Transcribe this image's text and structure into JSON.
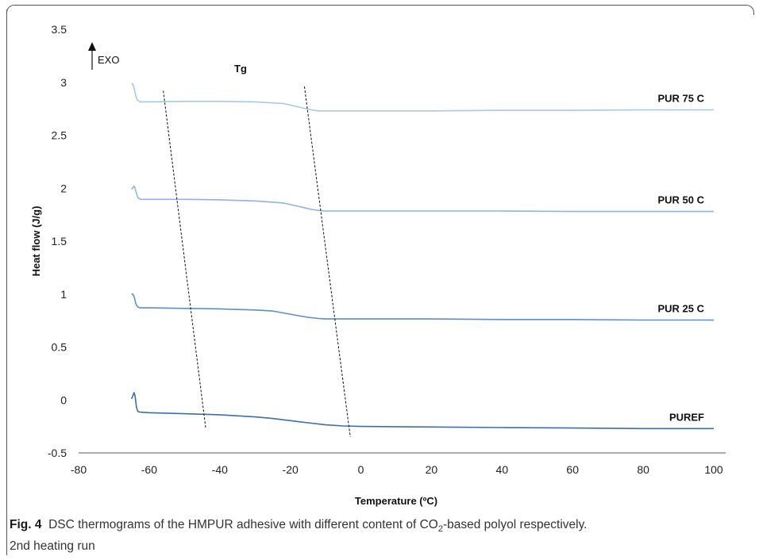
{
  "chart_data": {
    "type": "line",
    "xlabel": "Temperature (ºC)",
    "ylabel": "Heat flow (J/g)",
    "xlim": [
      -80,
      100
    ],
    "ylim": [
      -0.5,
      3.5
    ],
    "xticks": [
      "-80",
      "-60",
      "-40",
      "-20",
      "0",
      "20",
      "40",
      "60",
      "80",
      "100"
    ],
    "yticks": [
      "-0.5",
      "0",
      "0.5",
      "1",
      "1.5",
      "2",
      "2.5",
      "3",
      "3.5"
    ],
    "grid": false,
    "annotations": {
      "exo": "EXO",
      "tg": "Tg",
      "tg_line_1": [
        [
          -56,
          2.92
        ],
        [
          -44,
          -0.26
        ]
      ],
      "tg_line_2": [
        [
          -16,
          2.96
        ],
        [
          -3,
          -0.35
        ]
      ]
    },
    "series": [
      {
        "name": "PUR 75 C",
        "color": "#a9c7e8",
        "x": [
          -65,
          -64.6,
          -64.2,
          -63.8,
          -63.3,
          -62.5,
          -60,
          -50,
          -40,
          -30,
          -22,
          -18,
          -14,
          -12,
          -10,
          0,
          20,
          40,
          60,
          80,
          100
        ],
        "y": [
          2.99,
          2.98,
          2.94,
          2.87,
          2.83,
          2.815,
          2.815,
          2.82,
          2.82,
          2.815,
          2.8,
          2.77,
          2.74,
          2.73,
          2.73,
          2.73,
          2.73,
          2.735,
          2.735,
          2.74,
          2.74
        ]
      },
      {
        "name": "PUR 50 C",
        "color": "#8fb4df",
        "x": [
          -65,
          -64.7,
          -64.3,
          -64,
          -63.6,
          -63.2,
          -62.5,
          -60,
          -50,
          -40,
          -30,
          -22,
          -18,
          -14,
          -12,
          -10,
          0,
          20,
          40,
          60,
          80,
          100
        ],
        "y": [
          1.99,
          2.0,
          2.02,
          2.0,
          1.95,
          1.91,
          1.895,
          1.895,
          1.895,
          1.89,
          1.88,
          1.86,
          1.83,
          1.8,
          1.79,
          1.785,
          1.785,
          1.785,
          1.785,
          1.78,
          1.78,
          1.78
        ]
      },
      {
        "name": "PUR 25 C",
        "color": "#5b8fc9",
        "x": [
          -65,
          -64.6,
          -64.2,
          -63.8,
          -63.3,
          -62.5,
          -60,
          -50,
          -40,
          -30,
          -25,
          -20,
          -15,
          -12,
          -10,
          0,
          20,
          40,
          60,
          80,
          100
        ],
        "y": [
          1.0,
          1.0,
          0.97,
          0.91,
          0.88,
          0.87,
          0.87,
          0.865,
          0.86,
          0.85,
          0.84,
          0.81,
          0.78,
          0.77,
          0.765,
          0.765,
          0.765,
          0.76,
          0.76,
          0.755,
          0.755
        ]
      },
      {
        "name": "PUREF",
        "color": "#3d6ea8",
        "x": [
          -65,
          -64.6,
          -64.3,
          -64,
          -63.6,
          -63.2,
          -62.5,
          -60,
          -50,
          -40,
          -30,
          -25,
          -20,
          -15,
          -10,
          -5,
          0,
          20,
          40,
          60,
          80,
          100
        ],
        "y": [
          0.01,
          0.04,
          0.07,
          0.04,
          -0.07,
          -0.11,
          -0.115,
          -0.12,
          -0.13,
          -0.14,
          -0.16,
          -0.175,
          -0.195,
          -0.215,
          -0.235,
          -0.245,
          -0.25,
          -0.255,
          -0.26,
          -0.265,
          -0.27,
          -0.27
        ]
      }
    ]
  },
  "caption": {
    "lead": "Fig. 4",
    "text_before_sub": "  DSC thermograms of the HMPUR adhesive with different content of CO",
    "sub": "2",
    "text_after_sub": "-based polyol respectively.",
    "line2": "2nd heating run"
  }
}
